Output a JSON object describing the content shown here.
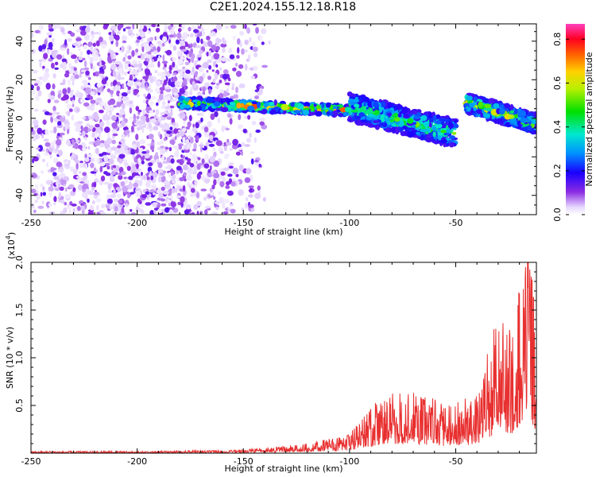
{
  "title": "C2E1.2024.155.12.18.R18",
  "chart_data": [
    {
      "type": "heatmap",
      "xlabel": "Height of straight line (km)",
      "ylabel": "Frequency (Hz)",
      "xlim": [
        -250,
        -12
      ],
      "ylim": [
        -50,
        49
      ],
      "x_ticks": [
        -250,
        -200,
        -150,
        -100,
        -50
      ],
      "y_ticks": [
        -40,
        -20,
        0,
        20,
        40
      ],
      "colorbar": {
        "label": "Normalized spectral amplitude",
        "range": [
          0,
          0.87
        ],
        "ticks": [
          0.0,
          0.2,
          0.4,
          0.6,
          0.8
        ],
        "colormap": "white-violet-blue-cyan-green-yellow-orange-red-magenta"
      },
      "features": [
        {
          "x_range": [
            -250,
            -140
          ],
          "freq_range": [
            -50,
            49
          ],
          "amplitude": [
            0.02,
            0.12
          ]
        },
        {
          "x_range": [
            -180,
            -100
          ],
          "freq_center": [
            8,
            4
          ],
          "freq_width": 5,
          "amplitude": [
            0.15,
            0.85
          ]
        },
        {
          "x_range": [
            -100,
            -50
          ],
          "freq_center": [
            6,
            -8
          ],
          "freq_width": 14,
          "amplitude": [
            0.15,
            0.55
          ]
        },
        {
          "x_range": [
            -45,
            -12
          ],
          "freq_center": [
            8,
            -3
          ],
          "freq_width": 10,
          "amplitude": [
            0.15,
            0.7
          ]
        }
      ]
    },
    {
      "type": "line",
      "xlabel": "Height of straight line (km)",
      "ylabel": "SNR (10 * v/v)",
      "multiplier_label": "(x10",
      "multiplier_exp": "4",
      "xlim": [
        -250,
        -12
      ],
      "ylim": [
        0,
        2.0
      ],
      "x_ticks": [
        -250,
        -200,
        -150,
        -100,
        -50
      ],
      "y_ticks": [
        0.5,
        1.0,
        1.5,
        2.0
      ],
      "series": [
        {
          "color": "#e83030",
          "envelope": [
            {
              "x": -250,
              "y": 0.02
            },
            {
              "x": -200,
              "y": 0.02
            },
            {
              "x": -160,
              "y": 0.03
            },
            {
              "x": -140,
              "y": 0.05
            },
            {
              "x": -120,
              "y": 0.1
            },
            {
              "x": -100,
              "y": 0.2
            },
            {
              "x": -85,
              "y": 0.6
            },
            {
              "x": -70,
              "y": 0.65
            },
            {
              "x": -55,
              "y": 0.5
            },
            {
              "x": -40,
              "y": 0.6
            },
            {
              "x": -30,
              "y": 1.45
            },
            {
              "x": -25,
              "y": 1.25
            },
            {
              "x": -20,
              "y": 1.7
            },
            {
              "x": -15,
              "y": 2.0
            },
            {
              "x": -12,
              "y": 1.4
            }
          ]
        }
      ]
    }
  ]
}
